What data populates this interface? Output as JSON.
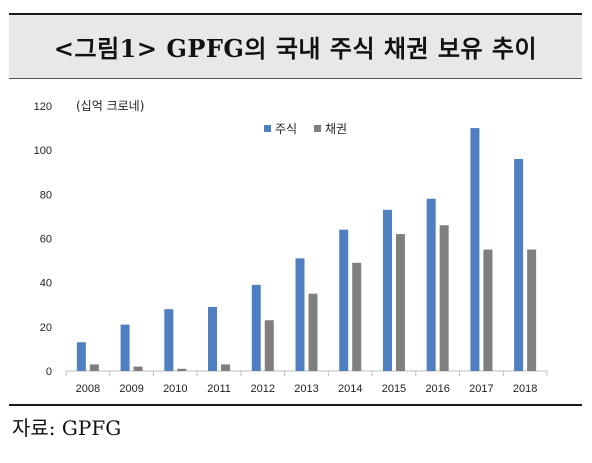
{
  "title": "<그림1> GPFG의 국내 주식 채권 보유 추이",
  "source": "자료: GPFG",
  "chart_data": {
    "type": "bar",
    "unit_label": "(십억 크로네)",
    "categories": [
      "2008",
      "2009",
      "2010",
      "2011",
      "2012",
      "2013",
      "2014",
      "2015",
      "2016",
      "2017",
      "2018"
    ],
    "series": [
      {
        "name": "주식",
        "color": "#4f7fc0",
        "values": [
          13,
          21,
          28,
          29,
          39,
          51,
          64,
          73,
          78,
          110,
          96
        ]
      },
      {
        "name": "채권",
        "color": "#7f7f7f",
        "values": [
          3,
          2,
          1,
          3,
          23,
          35,
          49,
          62,
          66,
          55,
          55
        ]
      }
    ],
    "ylim": [
      0,
      120
    ],
    "yticks": [
      0,
      20,
      40,
      60,
      80,
      100,
      120
    ],
    "legend_position": "top-center",
    "grid": false
  }
}
